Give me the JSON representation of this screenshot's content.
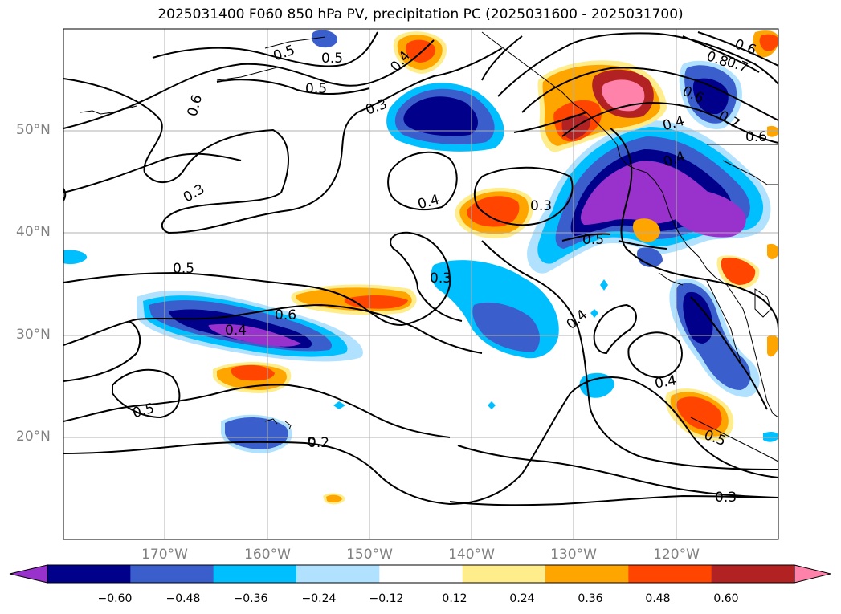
{
  "title": "2025031400 F060 850 hPa PV, precipitation PC (2025031600 - 2025031700)",
  "lat_labels": [
    "50°N",
    "40°N",
    "30°N",
    "20°N"
  ],
  "lon_labels": [
    "170°W",
    "160°W",
    "150°W",
    "140°W",
    "130°W",
    "120°W"
  ],
  "contour_labels": [
    "0.6",
    "0.5",
    "0.5",
    "0.4",
    "0.3",
    "0.3",
    "0.4",
    "0.3",
    "0.5",
    "0.5",
    "0.6",
    "0.4",
    "0.3",
    "0.4",
    "0.5",
    "0.2",
    "0.4",
    "0.5",
    "0.3",
    "0.4",
    "0.6",
    "0.7",
    "0.6",
    "0.6",
    "0.4",
    "0.8",
    "0.5",
    "0.7"
  ],
  "colorbar": {
    "ticks": [
      "−0.60",
      "−0.48",
      "−0.36",
      "−0.24",
      "−0.12",
      "0.12",
      "0.24",
      "0.36",
      "0.48",
      "0.60"
    ],
    "colors": [
      "#9932CC",
      "#00008B",
      "#3A5FCD",
      "#00BFFF",
      "#B0E2FF",
      "#FFFFFF",
      "#FFEC8B",
      "#FFA500",
      "#FF4500",
      "#B22222",
      "#FF82AB"
    ]
  }
}
